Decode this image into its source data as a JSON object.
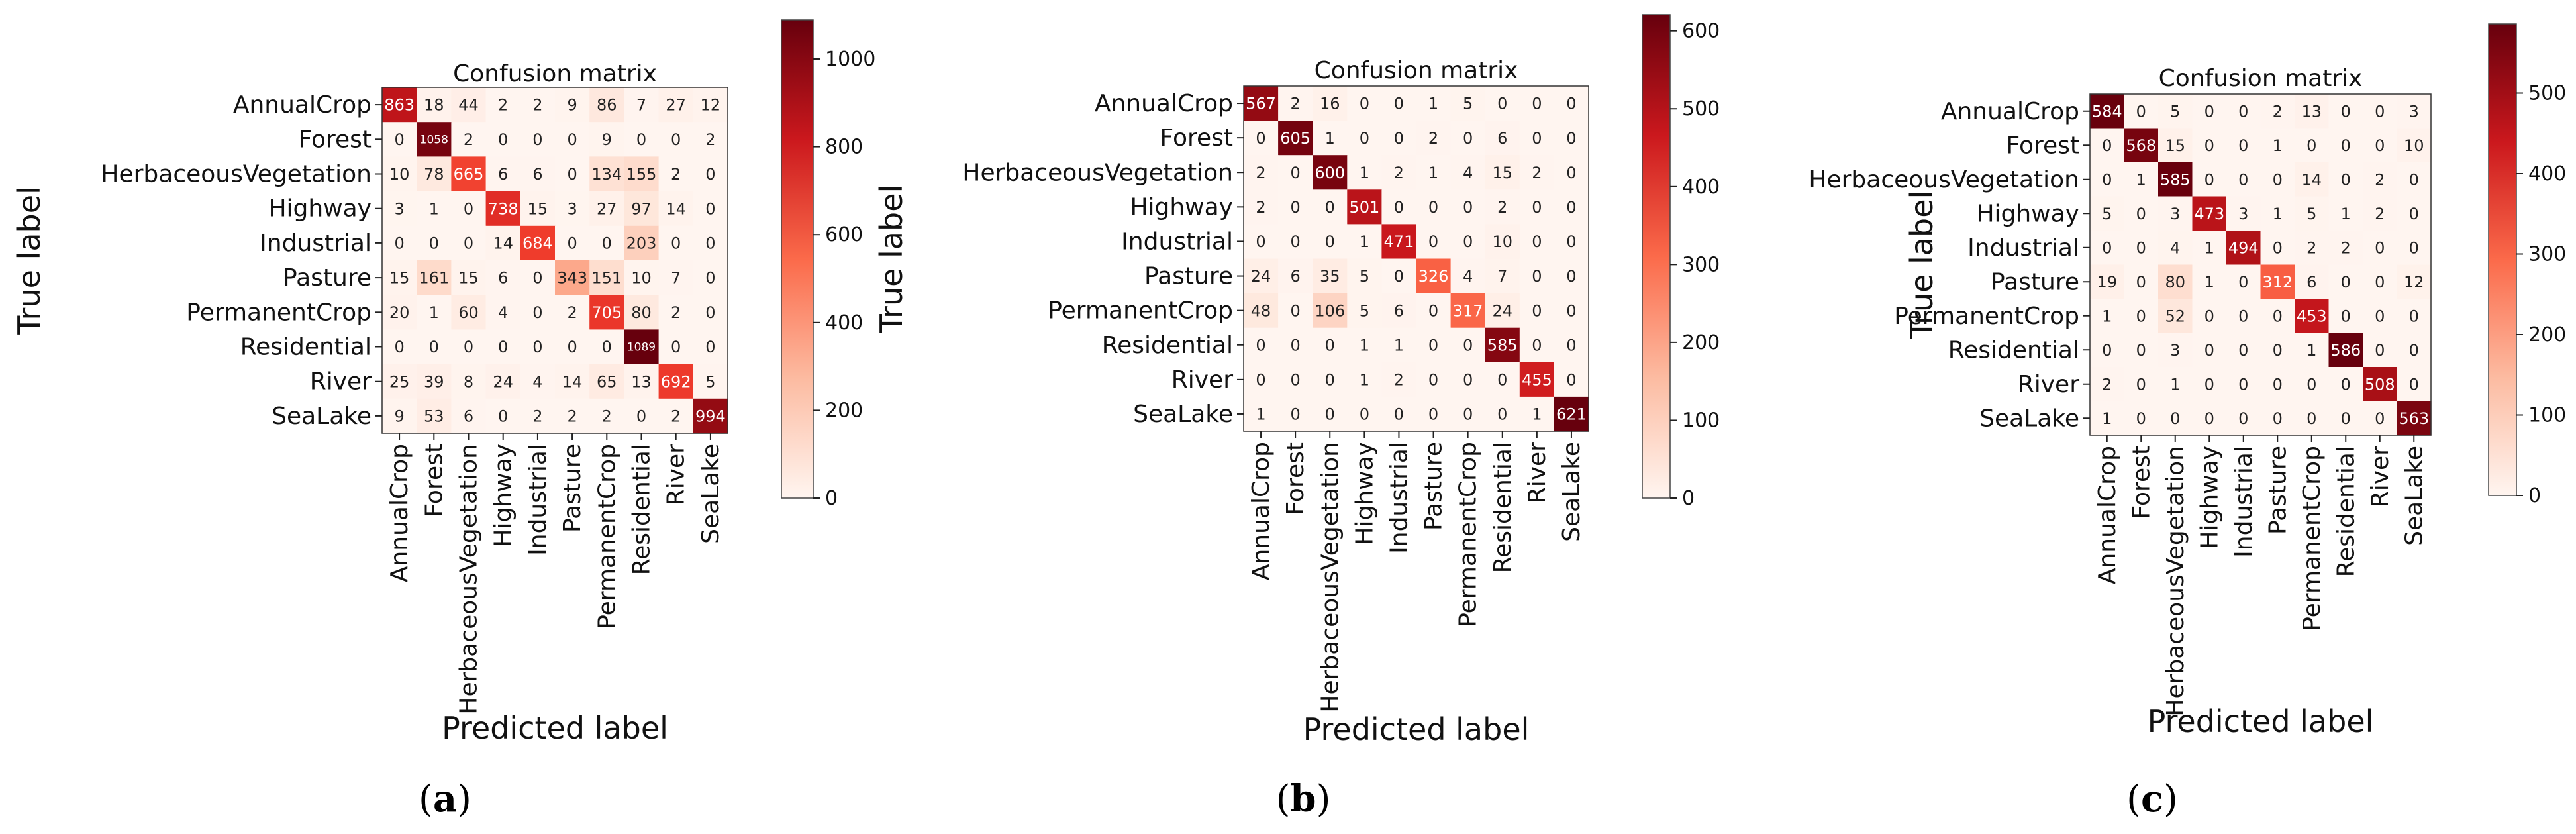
{
  "chart_data": [
    {
      "type": "heatmap",
      "panel_label": "a",
      "title": "Confusion matrix",
      "xlabel": "Predicted label",
      "ylabel": "True label",
      "labels": [
        "AnnualCrop",
        "Forest",
        "HerbaceousVegetation",
        "Highway",
        "Industrial",
        "Pasture",
        "PermanentCrop",
        "Residential",
        "River",
        "SeaLake"
      ],
      "matrix": [
        [
          863,
          18,
          44,
          2,
          2,
          9,
          86,
          7,
          27,
          12
        ],
        [
          0,
          1058,
          2,
          0,
          0,
          0,
          9,
          0,
          0,
          2
        ],
        [
          10,
          78,
          665,
          6,
          6,
          0,
          134,
          155,
          2,
          0
        ],
        [
          3,
          1,
          0,
          738,
          15,
          3,
          27,
          97,
          14,
          0
        ],
        [
          0,
          0,
          0,
          14,
          684,
          0,
          0,
          203,
          0,
          0
        ],
        [
          15,
          161,
          15,
          6,
          0,
          343,
          151,
          10,
          7,
          0
        ],
        [
          20,
          1,
          60,
          4,
          0,
          2,
          705,
          80,
          2,
          0
        ],
        [
          0,
          0,
          0,
          0,
          0,
          0,
          0,
          1089,
          0,
          0
        ],
        [
          25,
          39,
          8,
          24,
          4,
          14,
          65,
          13,
          692,
          5
        ],
        [
          9,
          53,
          6,
          0,
          2,
          2,
          2,
          0,
          2,
          994
        ]
      ],
      "vmax": 1089,
      "colorbar_ticks": [
        0,
        200,
        400,
        600,
        800,
        1000
      ],
      "colors": {
        "low": "#fff5f0",
        "mid": "#ef3b2c",
        "high": "#67000d"
      }
    },
    {
      "type": "heatmap",
      "panel_label": "b",
      "title": "Confusion matrix",
      "xlabel": "Predicted label",
      "ylabel": "True label",
      "labels": [
        "AnnualCrop",
        "Forest",
        "HerbaceousVegetation",
        "Highway",
        "Industrial",
        "Pasture",
        "PermanentCrop",
        "Residential",
        "River",
        "SeaLake"
      ],
      "matrix": [
        [
          567,
          2,
          16,
          0,
          0,
          1,
          5,
          0,
          0,
          0
        ],
        [
          0,
          605,
          1,
          0,
          0,
          2,
          0,
          6,
          0,
          0
        ],
        [
          2,
          0,
          600,
          1,
          2,
          1,
          4,
          15,
          2,
          0
        ],
        [
          2,
          0,
          0,
          501,
          0,
          0,
          0,
          2,
          0,
          0
        ],
        [
          0,
          0,
          0,
          1,
          471,
          0,
          0,
          10,
          0,
          0
        ],
        [
          24,
          6,
          35,
          5,
          0,
          326,
          4,
          7,
          0,
          0
        ],
        [
          48,
          0,
          106,
          5,
          6,
          0,
          317,
          24,
          0,
          0
        ],
        [
          0,
          0,
          0,
          1,
          1,
          0,
          0,
          585,
          0,
          0
        ],
        [
          0,
          0,
          0,
          1,
          2,
          0,
          0,
          0,
          455,
          0
        ],
        [
          1,
          0,
          0,
          0,
          0,
          0,
          0,
          0,
          1,
          621
        ]
      ],
      "vmax": 621,
      "colorbar_ticks": [
        0,
        100,
        200,
        300,
        400,
        500,
        600
      ],
      "colors": {
        "low": "#fff5f0",
        "mid": "#ef3b2c",
        "high": "#67000d"
      }
    },
    {
      "type": "heatmap",
      "panel_label": "c",
      "title": "Confusion matrix",
      "xlabel": "Predicted label",
      "ylabel": "True label",
      "labels": [
        "AnnualCrop",
        "Forest",
        "HerbaceousVegetation",
        "Highway",
        "Industrial",
        "Pasture",
        "PermanentCrop",
        "Residential",
        "River",
        "SeaLake"
      ],
      "matrix": [
        [
          584,
          0,
          5,
          0,
          0,
          2,
          13,
          0,
          0,
          3
        ],
        [
          0,
          568,
          15,
          0,
          0,
          1,
          0,
          0,
          0,
          10
        ],
        [
          0,
          1,
          585,
          0,
          0,
          0,
          14,
          0,
          2,
          0
        ],
        [
          5,
          0,
          3,
          473,
          3,
          1,
          5,
          1,
          2,
          0
        ],
        [
          0,
          0,
          4,
          1,
          494,
          0,
          2,
          2,
          0,
          0
        ],
        [
          19,
          0,
          80,
          1,
          0,
          312,
          6,
          0,
          0,
          12
        ],
        [
          1,
          0,
          52,
          0,
          0,
          0,
          453,
          0,
          0,
          0
        ],
        [
          0,
          0,
          3,
          0,
          0,
          0,
          1,
          586,
          0,
          0
        ],
        [
          2,
          0,
          1,
          0,
          0,
          0,
          0,
          0,
          508,
          0
        ],
        [
          1,
          0,
          0,
          0,
          0,
          0,
          0,
          0,
          0,
          563
        ]
      ],
      "vmax": 586,
      "colorbar_ticks": [
        0,
        100,
        200,
        300,
        400,
        500
      ],
      "colors": {
        "low": "#fff5f0",
        "mid": "#ef3b2c",
        "high": "#67000d"
      }
    }
  ]
}
